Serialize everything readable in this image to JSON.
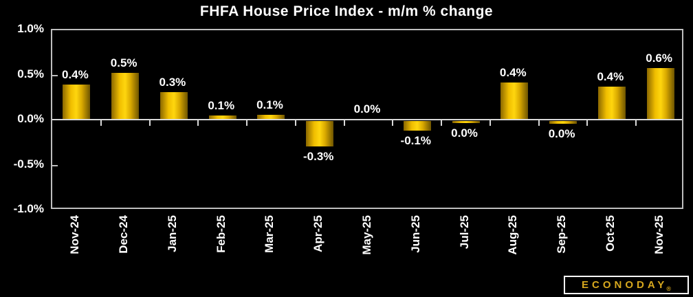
{
  "title": "FHFA House Price Index - m/m % change",
  "logo": {
    "text": "ECONODAY",
    "registered": "®"
  },
  "colors": {
    "background": "#000000",
    "text": "#ffffff",
    "plot_border": "#bfbfbf",
    "zero_line": "#d9d9d9",
    "bar_gradient": [
      "#8a6700",
      "#f0be00",
      "#ffd60e",
      "#d9a900",
      "#6e5400"
    ],
    "logo_gold": "#d7a81e",
    "logo_border": "#ffffff"
  },
  "y_axis": {
    "labels": [
      "1.0%",
      "0.5%",
      "0.0%",
      "-0.5%",
      "-1.0%"
    ],
    "min": -1.0,
    "max": 1.0
  },
  "chart_data": {
    "type": "bar",
    "title": "FHFA House Price Index - m/m % change",
    "categories": [
      "Nov-24",
      "Dec-24",
      "Jan-25",
      "Feb-25",
      "Mar-25",
      "Apr-25",
      "May-25",
      "Jun-25",
      "Jul-25",
      "Aug-25",
      "Sep-25",
      "Oct-25",
      "Nov-25"
    ],
    "values": [
      0.4,
      0.5,
      0.3,
      0.1,
      0.1,
      -0.3,
      0.0,
      -0.1,
      0.0,
      0.4,
      0.0,
      0.4,
      0.6
    ],
    "data_labels": [
      "0.4%",
      "0.5%",
      "0.3%",
      "0.1%",
      "0.1%",
      "-0.3%",
      "0.0%",
      "-0.1%",
      "0.0%",
      "0.4%",
      "0.0%",
      "0.4%",
      "0.6%"
    ],
    "bar_plot_values": [
      0.4,
      0.53,
      0.31,
      0.05,
      0.06,
      -0.28,
      0.015,
      -0.105,
      -0.025,
      0.42,
      -0.03,
      0.375,
      0.58
    ],
    "xlabel": "",
    "ylabel": "",
    "ylim": [
      -1.0,
      1.0
    ],
    "grid": false,
    "legend": false,
    "bar_color": "gold-gradient",
    "label_position": "outside-end"
  }
}
